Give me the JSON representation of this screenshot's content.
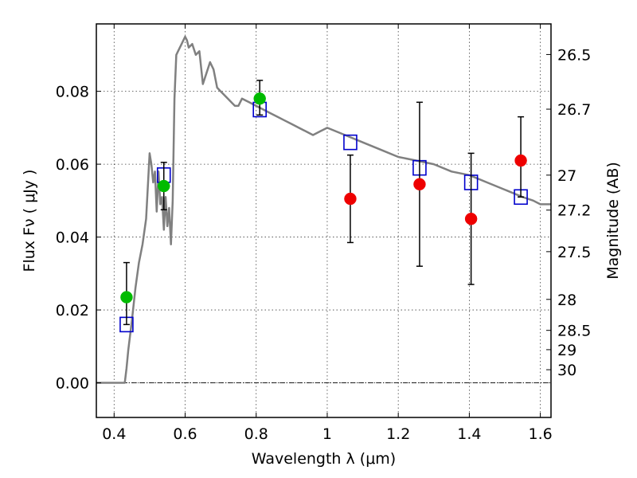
{
  "chart_data": {
    "type": "scatter",
    "title": "",
    "xlabel": "Wavelength  λ (μm)",
    "ylabel": "Flux  Fν  ( μJy )",
    "ylabel_right": "Magnitude (AB)",
    "xlim": [
      0.35,
      1.63
    ],
    "ylim": [
      -0.0095,
      0.0985
    ],
    "grid": true,
    "x_ticks": [
      0.4,
      0.6,
      0.8,
      1.0,
      1.2,
      1.4,
      1.6
    ],
    "x_tick_labels": [
      "0.4",
      "0.6",
      "0.8",
      "1",
      "1.2",
      "1.4",
      "1.6"
    ],
    "y_ticks": [
      0.0,
      0.02,
      0.04,
      0.06,
      0.08
    ],
    "y_tick_labels": [
      "0.00",
      "0.02",
      "0.04",
      "0.06",
      "0.08"
    ],
    "right_ticks": [
      {
        "label": "26.5",
        "flux": 0.0901
      },
      {
        "label": "26.7",
        "flux": 0.0751
      },
      {
        "label": "27",
        "flux": 0.057
      },
      {
        "label": "27.2",
        "flux": 0.0474
      },
      {
        "label": "27.5",
        "flux": 0.036
      },
      {
        "label": "28",
        "flux": 0.0229
      },
      {
        "label": "28.5",
        "flux": 0.0144
      },
      {
        "label": "29",
        "flux": 0.0091
      },
      {
        "label": "30",
        "flux": 0.0036
      }
    ],
    "series": [
      {
        "kind": "line",
        "color": "#808080",
        "x": [
          0.35,
          0.43,
          0.435,
          0.44,
          0.45,
          0.46,
          0.47,
          0.48,
          0.49,
          0.5,
          0.505,
          0.51,
          0.515,
          0.52,
          0.525,
          0.53,
          0.535,
          0.54,
          0.545,
          0.55,
          0.555,
          0.56,
          0.565,
          0.57,
          0.575,
          0.58,
          0.59,
          0.6,
          0.605,
          0.61,
          0.62,
          0.63,
          0.64,
          0.65,
          0.66,
          0.67,
          0.68,
          0.69,
          0.7,
          0.72,
          0.74,
          0.75,
          0.76,
          0.78,
          0.8,
          0.82,
          0.84,
          0.86,
          0.88,
          0.9,
          0.92,
          0.94,
          0.96,
          0.98,
          1.0,
          1.05,
          1.1,
          1.15,
          1.2,
          1.25,
          1.3,
          1.35,
          1.4,
          1.45,
          1.5,
          1.55,
          1.58,
          1.6,
          1.63
        ],
        "y": [
          0.0,
          0.0,
          0.004,
          0.009,
          0.017,
          0.026,
          0.033,
          0.038,
          0.045,
          0.063,
          0.06,
          0.055,
          0.058,
          0.047,
          0.058,
          0.049,
          0.051,
          0.042,
          0.051,
          0.043,
          0.048,
          0.038,
          0.05,
          0.078,
          0.09,
          0.091,
          0.093,
          0.095,
          0.094,
          0.092,
          0.093,
          0.09,
          0.091,
          0.082,
          0.085,
          0.088,
          0.086,
          0.081,
          0.08,
          0.078,
          0.076,
          0.076,
          0.078,
          0.077,
          0.076,
          0.075,
          0.074,
          0.073,
          0.072,
          0.071,
          0.07,
          0.069,
          0.068,
          0.069,
          0.07,
          0.068,
          0.066,
          0.064,
          0.062,
          0.061,
          0.06,
          0.058,
          0.057,
          0.055,
          0.053,
          0.051,
          0.05,
          0.049,
          0.049
        ]
      },
      {
        "kind": "points",
        "marker": "open-square",
        "color": "#0000cc",
        "x": [
          0.435,
          0.54,
          0.81,
          1.065,
          1.26,
          1.405,
          1.545
        ],
        "y": [
          0.016,
          0.057,
          0.075,
          0.066,
          0.059,
          0.055,
          0.051
        ]
      },
      {
        "kind": "points",
        "marker": "filled-circle",
        "color": "#00bb00",
        "x": [
          0.435,
          0.54,
          0.81
        ],
        "y": [
          0.0235,
          0.054,
          0.078
        ],
        "yerr_low": [
          0.016,
          0.0475,
          0.0735
        ],
        "yerr_high": [
          0.033,
          0.0605,
          0.083
        ]
      },
      {
        "kind": "points",
        "marker": "filled-circle",
        "color": "#ee0000",
        "x": [
          1.065,
          1.26,
          1.405,
          1.545
        ],
        "y": [
          0.0505,
          0.0545,
          0.045,
          0.061
        ],
        "yerr_low": [
          0.0385,
          0.032,
          0.027,
          0.051
        ],
        "yerr_high": [
          0.0625,
          0.077,
          0.063,
          0.073
        ]
      }
    ]
  }
}
